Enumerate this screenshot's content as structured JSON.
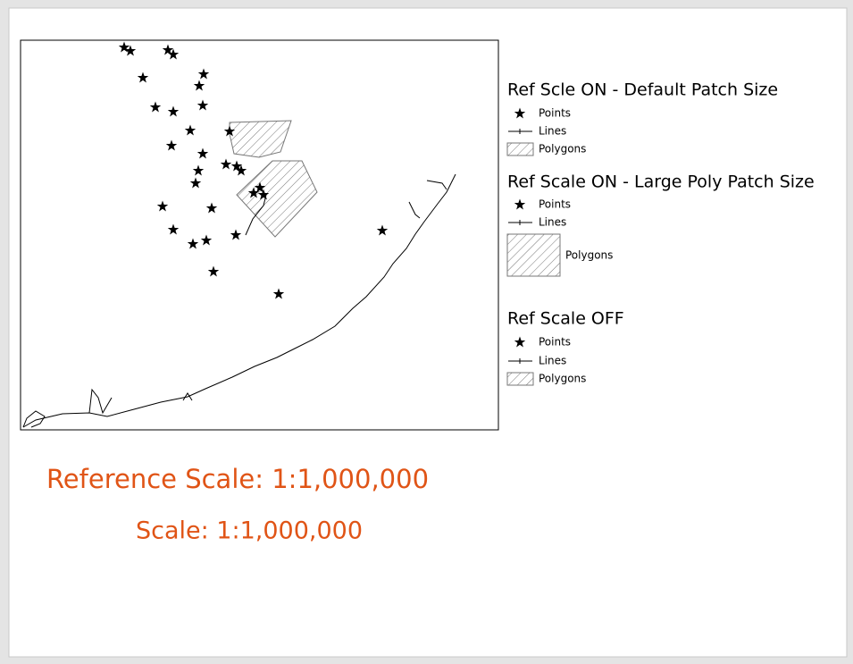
{
  "legend": {
    "groups": [
      {
        "title": "Ref Scle ON - Default Patch Size",
        "items": [
          "Points",
          "Lines",
          "Polygons"
        ]
      },
      {
        "title": "Ref Scale ON - Large Poly Patch Size",
        "items": [
          "Points",
          "Lines",
          "Polygons"
        ]
      },
      {
        "title": "Ref Scale OFF",
        "items": [
          "Points",
          "Lines",
          "Polygons"
        ]
      }
    ]
  },
  "reference_scale": "Reference Scale: 1:1,000,000",
  "scale": "Scale: 1:1,000,000"
}
